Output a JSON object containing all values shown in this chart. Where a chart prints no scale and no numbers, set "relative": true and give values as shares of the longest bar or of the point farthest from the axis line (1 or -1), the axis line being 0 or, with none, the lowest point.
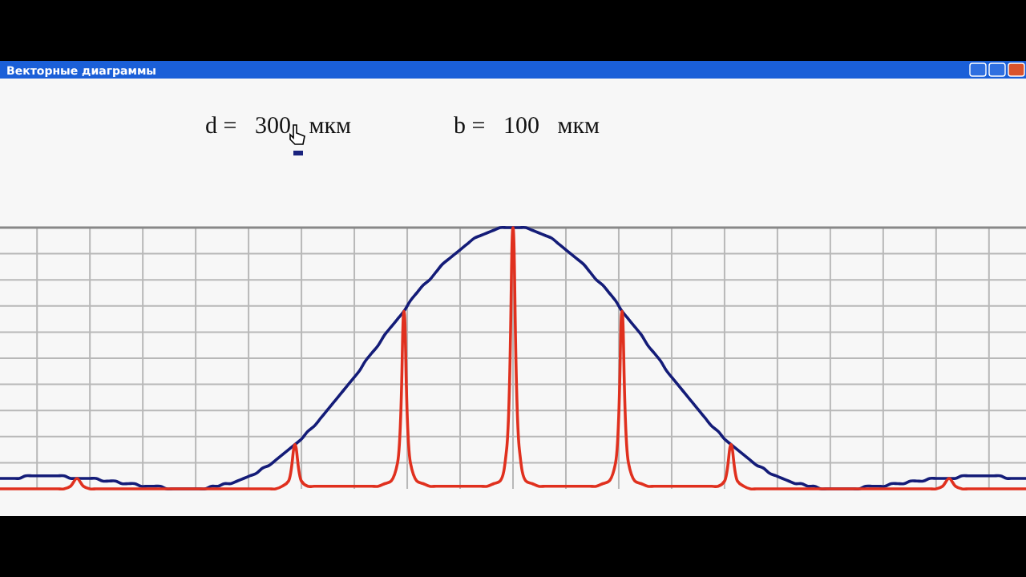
{
  "chart_data": {
    "type": "line",
    "title": "Векторные диаграммы",
    "annotations": [
      "d =   300   мкм",
      "b =   100   мкм"
    ],
    "relative": true,
    "grid": true,
    "marker": "none",
    "line_style": "solid",
    "categories": [
      null,
      null,
      null,
      null,
      null,
      null,
      null,
      null,
      null,
      null,
      null,
      null,
      null,
      null,
      null,
      null,
      null,
      null,
      null,
      null,
      null,
      null,
      null,
      null,
      null,
      null,
      null,
      null,
      null,
      null,
      null,
      null,
      null,
      null,
      null,
      null,
      null,
      null,
      null,
      null,
      null,
      null,
      null,
      null,
      null,
      null,
      null,
      null,
      null,
      null,
      null,
      null,
      null,
      null,
      null,
      null,
      null,
      null,
      null,
      null,
      null,
      null,
      null,
      null,
      null,
      null,
      null,
      null,
      null,
      null,
      null,
      null,
      null,
      null,
      null,
      null,
      null,
      null,
      null,
      null,
      null,
      null,
      null,
      null,
      null,
      null,
      null,
      null,
      null,
      null,
      null,
      null,
      null,
      null,
      null,
      null,
      null,
      null,
      null,
      null,
      null,
      null,
      null,
      null,
      null,
      null,
      null,
      null,
      null,
      null,
      null,
      null,
      null,
      null,
      null,
      null,
      null,
      null,
      null,
      null,
      null,
      null,
      null,
      null,
      null,
      null,
      null,
      null,
      null,
      null,
      null,
      null,
      null,
      null,
      null,
      null,
      null,
      null,
      null,
      null,
      null,
      null,
      null,
      null,
      null,
      null,
      null,
      null,
      null,
      null,
      null,
      null,
      null,
      null,
      null,
      null,
      null,
      null,
      null,
      null,
      null
    ],
    "series": [
      {
        "color": "#141c78",
        "values": [
          0.04,
          0.04,
          0.04,
          0.04,
          0.05,
          0.05,
          0.05,
          0.05,
          0.05,
          0.05,
          0.05,
          0.04,
          0.04,
          0.04,
          0.04,
          0.04,
          0.03,
          0.03,
          0.03,
          0.02,
          0.02,
          0.02,
          0.01,
          0.01,
          0.01,
          0.01,
          0.0,
          0.0,
          0.0,
          0.0,
          0.0,
          0.0,
          0.0,
          0.01,
          0.01,
          0.02,
          0.02,
          0.03,
          0.04,
          0.05,
          0.06,
          0.08,
          0.09,
          0.11,
          0.13,
          0.15,
          0.17,
          0.19,
          0.22,
          0.24,
          0.27,
          0.3,
          0.33,
          0.36,
          0.39,
          0.42,
          0.45,
          0.49,
          0.52,
          0.55,
          0.59,
          0.62,
          0.65,
          0.68,
          0.72,
          0.75,
          0.78,
          0.8,
          0.83,
          0.86,
          0.88,
          0.9,
          0.92,
          0.94,
          0.96,
          0.97,
          0.98,
          0.99,
          1.0,
          1.0,
          1.0,
          1.0,
          1.0,
          0.99,
          0.98,
          0.97,
          0.96,
          0.94,
          0.92,
          0.9,
          0.88,
          0.86,
          0.83,
          0.8,
          0.78,
          0.75,
          0.72,
          0.68,
          0.65,
          0.62,
          0.59,
          0.55,
          0.52,
          0.49,
          0.45,
          0.42,
          0.39,
          0.36,
          0.33,
          0.3,
          0.27,
          0.24,
          0.22,
          0.19,
          0.17,
          0.15,
          0.13,
          0.11,
          0.09,
          0.08,
          0.06,
          0.05,
          0.04,
          0.03,
          0.02,
          0.02,
          0.01,
          0.01,
          0.0,
          0.0,
          0.0,
          0.0,
          0.0,
          0.0,
          0.0,
          0.01,
          0.01,
          0.01,
          0.01,
          0.02,
          0.02,
          0.02,
          0.03,
          0.03,
          0.03,
          0.04,
          0.04,
          0.04,
          0.04,
          0.04,
          0.05,
          0.05,
          0.05,
          0.05,
          0.05,
          0.05,
          0.05,
          0.04,
          0.04,
          0.04,
          0.04
        ]
      },
      {
        "color": "#e0301e",
        "values": [
          0,
          0,
          0,
          0,
          0,
          0,
          0,
          0,
          0,
          0,
          0,
          0.01,
          0.04,
          0.01,
          0,
          0,
          0,
          0,
          0,
          0,
          0,
          0,
          0,
          0,
          0,
          0,
          0,
          0,
          0,
          0,
          0,
          0,
          0,
          0,
          0,
          0,
          0,
          0,
          0,
          0,
          0,
          0,
          0,
          0,
          0.01,
          0.03,
          0.17,
          0.03,
          0.01,
          0.01,
          0.01,
          0.01,
          0.01,
          0.01,
          0.01,
          0.01,
          0.01,
          0.01,
          0.01,
          0.01,
          0.02,
          0.03,
          0.1,
          0.68,
          0.1,
          0.03,
          0.02,
          0.01,
          0.01,
          0.01,
          0.01,
          0.01,
          0.01,
          0.01,
          0.01,
          0.01,
          0.01,
          0.02,
          0.03,
          0.15,
          1.0,
          0.15,
          0.03,
          0.02,
          0.01,
          0.01,
          0.01,
          0.01,
          0.01,
          0.01,
          0.01,
          0.01,
          0.01,
          0.01,
          0.02,
          0.03,
          0.1,
          0.68,
          0.1,
          0.03,
          0.02,
          0.01,
          0.01,
          0.01,
          0.01,
          0.01,
          0.01,
          0.01,
          0.01,
          0.01,
          0.01,
          0.01,
          0.01,
          0.03,
          0.17,
          0.03,
          0.01,
          0,
          0,
          0,
          0,
          0,
          0,
          0,
          0,
          0,
          0,
          0,
          0,
          0,
          0,
          0,
          0,
          0,
          0,
          0,
          0,
          0,
          0,
          0,
          0,
          0,
          0,
          0,
          0,
          0,
          0,
          0.01,
          0.04,
          0.01,
          0,
          0,
          0,
          0,
          0,
          0,
          0,
          0,
          0,
          0,
          0
        ]
      }
    ]
  }
}
